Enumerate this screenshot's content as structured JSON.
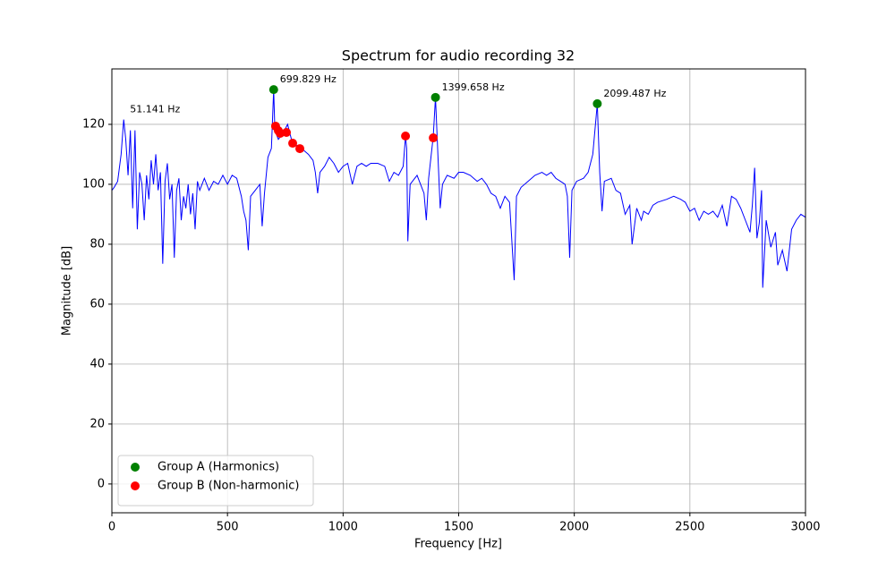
{
  "chart_data": {
    "type": "line",
    "title": "Spectrum for audio recording 32",
    "xlabel": "Frequency [Hz]",
    "ylabel": "Magnitude [dB]",
    "xlim": [
      0,
      3000
    ],
    "ylim": [
      -9.6,
      138.5
    ],
    "xticks": [
      0,
      500,
      1000,
      1500,
      2000,
      2500,
      3000
    ],
    "yticks": [
      0,
      20,
      40,
      60,
      80,
      100,
      120
    ],
    "grid": true,
    "legend": "lower left",
    "series": [
      {
        "type": "line",
        "color": "#0000ff",
        "x": [
          0,
          10,
          25,
          40,
          51.141,
          60,
          70,
          80,
          90,
          100,
          110,
          120,
          130,
          140,
          150,
          160,
          170,
          180,
          190,
          200,
          210,
          220,
          230,
          240,
          250,
          260,
          270,
          280,
          290,
          300,
          310,
          320,
          330,
          340,
          350,
          360,
          370,
          380,
          390,
          400,
          420,
          440,
          460,
          480,
          500,
          520,
          540,
          560,
          570,
          580,
          590,
          600,
          620,
          640,
          650,
          660,
          675,
          690,
          699.829,
          705,
          720,
          740,
          760,
          780,
          800,
          820,
          850,
          870,
          880,
          890,
          900,
          920,
          940,
          960,
          980,
          1000,
          1020,
          1040,
          1060,
          1080,
          1100,
          1120,
          1150,
          1180,
          1200,
          1220,
          1240,
          1260,
          1270,
          1275,
          1280,
          1290,
          1320,
          1350,
          1360,
          1370,
          1390,
          1399.658,
          1410,
          1420,
          1430,
          1450,
          1480,
          1500,
          1520,
          1550,
          1580,
          1600,
          1620,
          1640,
          1660,
          1680,
          1700,
          1720,
          1740,
          1750,
          1770,
          1800,
          1830,
          1860,
          1880,
          1900,
          1920,
          1940,
          1960,
          1970,
          1980,
          1990,
          2010,
          2040,
          2060,
          2080,
          2099.487,
          2110,
          2120,
          2130,
          2160,
          2180,
          2200,
          2220,
          2240,
          2250,
          2270,
          2290,
          2300,
          2320,
          2340,
          2360,
          2400,
          2430,
          2460,
          2480,
          2500,
          2520,
          2540,
          2560,
          2580,
          2600,
          2620,
          2640,
          2660,
          2680,
          2700,
          2720,
          2740,
          2760,
          2770,
          2780,
          2790,
          2800,
          2810,
          2815,
          2830,
          2850,
          2870,
          2880,
          2900,
          2920,
          2940,
          2960,
          2980,
          3000
        ],
        "values": [
          98,
          99,
          101,
          110,
          121.6,
          115,
          103,
          118,
          92,
          118,
          85,
          104,
          100,
          88,
          103,
          95,
          108,
          100,
          110,
          98,
          104,
          73.5,
          101,
          107,
          95,
          100,
          75.5,
          98,
          102,
          88,
          96,
          92,
          100,
          90,
          97,
          85,
          101,
          98,
          100,
          102,
          98,
          101,
          100,
          103,
          100,
          103,
          102,
          96,
          91,
          88,
          78,
          96,
          98,
          100,
          86,
          97,
          109,
          112,
          131.6,
          118,
          115,
          117,
          120,
          114,
          113,
          112,
          110,
          108,
          104,
          97,
          104,
          106,
          109,
          107,
          104,
          106,
          107,
          100,
          106,
          107,
          106,
          107,
          107,
          106,
          101,
          104,
          103,
          106,
          116,
          112,
          81,
          100,
          103,
          97,
          88,
          102,
          116,
          129,
          110,
          92,
          100,
          103,
          102,
          104,
          104,
          103,
          101,
          102,
          100,
          97,
          96,
          92,
          96,
          94,
          68,
          96,
          99,
          101,
          103,
          104,
          103,
          104,
          102,
          101,
          100,
          96,
          75.5,
          98,
          101,
          102,
          104,
          110,
          126.9,
          104,
          91,
          101,
          102,
          98,
          97,
          90,
          93,
          80,
          92,
          88,
          91,
          90,
          93,
          94,
          95,
          96,
          95,
          94,
          91,
          92,
          88,
          91,
          90,
          91,
          89,
          93,
          86,
          96,
          95,
          92,
          88,
          84,
          93,
          105.5,
          82,
          87,
          98,
          65.5,
          88,
          79,
          84,
          73,
          78,
          71,
          85,
          88,
          90,
          89
        ]
      },
      {
        "type": "scatter",
        "name": "Group A (Harmonics)",
        "color": "#008000",
        "x": [
          699.829,
          1399.658,
          2099.487
        ],
        "values": [
          131.6,
          129.0,
          126.9
        ]
      },
      {
        "type": "scatter",
        "name": "Group B (Non-harmonic)",
        "color": "#ff0000",
        "x": [
          708,
          720,
          728,
          755,
          782,
          813,
          1270,
          1390
        ],
        "values": [
          119.4,
          117.9,
          117.0,
          117.3,
          113.7,
          111.9,
          116.1,
          115.5
        ]
      }
    ],
    "annotations": [
      {
        "text": "51.141 Hz",
        "x": 51.141,
        "y": 121.6
      },
      {
        "text": "699.829 Hz",
        "x": 699.829,
        "y": 131.6
      },
      {
        "text": "1399.658 Hz",
        "x": 1399.658,
        "y": 129.0
      },
      {
        "text": "2099.487 Hz",
        "x": 2099.487,
        "y": 126.9
      }
    ]
  }
}
